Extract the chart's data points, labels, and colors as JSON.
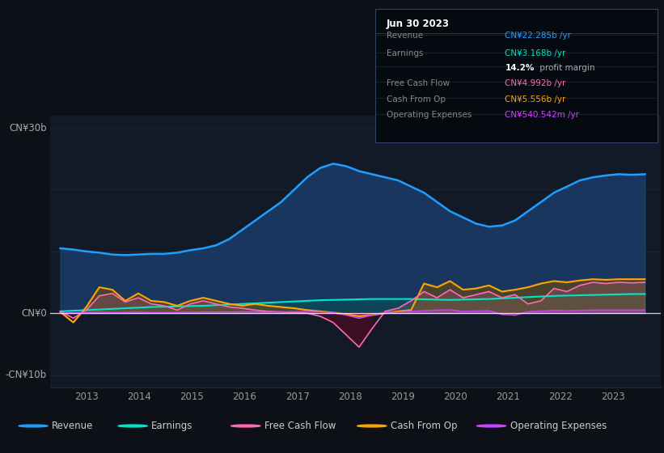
{
  "bg_color": "#0d1117",
  "plot_bg_color": "#131a27",
  "title": "Jun 30 2023",
  "tooltip": {
    "Revenue": {
      "value": "CN¥22.285b /yr",
      "color": "#1e9eff"
    },
    "Earnings": {
      "value": "CN¥3.168b /yr",
      "color": "#00e5cc"
    },
    "profit_margin_bold": "14.2%",
    "profit_margin_rest": " profit margin",
    "Free Cash Flow": {
      "value": "CN¥4.992b /yr",
      "color": "#ff69b4"
    },
    "Cash From Op": {
      "value": "CN¥5.556b /yr",
      "color": "#ffa500"
    },
    "Operating Expenses": {
      "value": "CN¥540.542m /yr",
      "color": "#cc44ff"
    }
  },
  "ylabel_top": "CN¥30b",
  "ylabel_zero": "CN¥0",
  "ylabel_bottom": "-CN¥10b",
  "x_years": [
    2013,
    2014,
    2015,
    2016,
    2017,
    2018,
    2019,
    2020,
    2021,
    2022,
    2023
  ],
  "colors": {
    "revenue": "#1e9eff",
    "revenue_fill": "#1e4e8c",
    "earnings": "#00e5cc",
    "earnings_fill": "#005a52",
    "free_cash_flow": "#ff69b4",
    "cash_from_op": "#ffa500",
    "cash_from_op_fill_pos": "#7a5000",
    "cash_from_op_fill_neg": "#5a2000",
    "operating_expenses": "#cc44ff",
    "zero_line": "#ffffff",
    "grid_line": "#1e2a3a"
  },
  "legend": [
    {
      "label": "Revenue",
      "color": "#1e9eff"
    },
    {
      "label": "Earnings",
      "color": "#00e5cc"
    },
    {
      "label": "Free Cash Flow",
      "color": "#ff69b4"
    },
    {
      "label": "Cash From Op",
      "color": "#ffa500"
    },
    {
      "label": "Operating Expenses",
      "color": "#cc44ff"
    }
  ],
  "ylim": [
    -12,
    32
  ],
  "xlim": [
    2012.3,
    2023.9
  ]
}
